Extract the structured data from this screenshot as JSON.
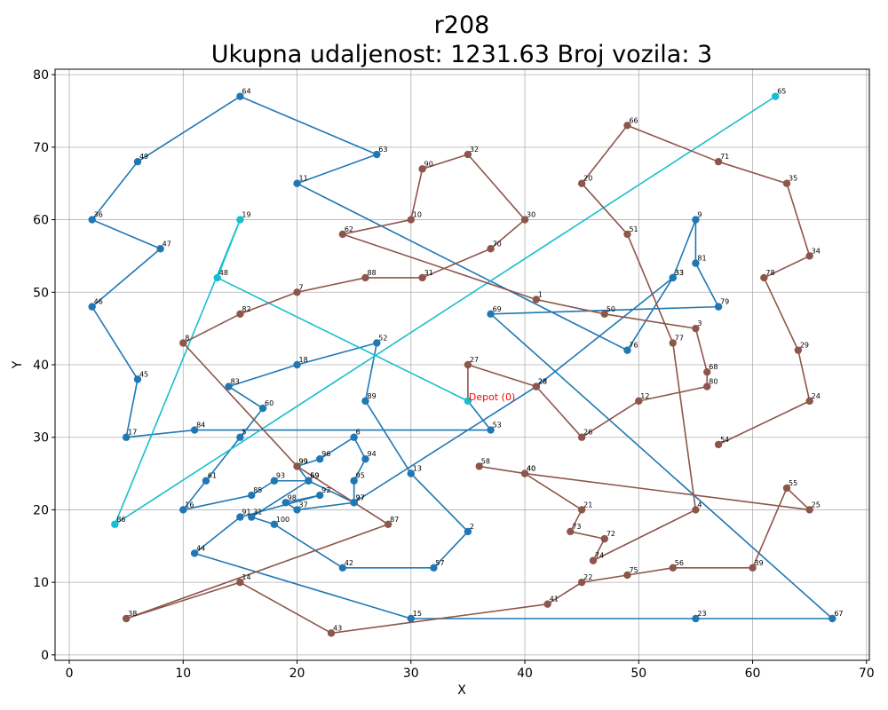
{
  "chart_data": {
    "type": "line",
    "title": "r208",
    "subtitle": "Ukupna udaljenost: 1231.63    Broj vozila: 3",
    "xlabel": "X",
    "ylabel": "Y",
    "xlim": [
      -1.25,
      70.25
    ],
    "ylim": [
      -0.75,
      80.75
    ],
    "xticks": [
      0,
      10,
      20,
      30,
      40,
      50,
      60,
      70
    ],
    "yticks": [
      0,
      10,
      20,
      30,
      40,
      50,
      60,
      70,
      80
    ],
    "grid": true,
    "depot": {
      "label": "Depot (0)",
      "x": 35,
      "y": 35,
      "color": "#ff0000"
    },
    "series": [
      {
        "color": "#1f77b4",
        "points": [
          [
            "",
            35,
            35
          ],
          [
            "53",
            37,
            31
          ],
          [
            "84",
            11,
            31
          ],
          [
            "17",
            5,
            30
          ],
          [
            "45",
            6,
            38
          ],
          [
            "46",
            2,
            48
          ],
          [
            "47",
            8,
            56
          ],
          [
            "36",
            2,
            60
          ],
          [
            "49",
            6,
            68
          ],
          [
            "64",
            15,
            77
          ],
          [
            "63",
            27,
            69
          ],
          [
            "11",
            20,
            65
          ],
          [
            "76",
            49,
            42
          ],
          [
            "33",
            53,
            52
          ],
          [
            "28",
            41,
            37
          ],
          [
            "27",
            25,
            21
          ],
          [
            "69",
            21,
            24
          ],
          [
            "31",
            16,
            19
          ],
          [
            "100",
            18,
            18
          ],
          [
            "42",
            24,
            12
          ],
          [
            "57",
            32,
            12
          ],
          [
            "2",
            35,
            17
          ],
          [
            "13",
            30,
            25
          ],
          [
            "89",
            26,
            35
          ],
          [
            "52",
            27,
            43
          ],
          [
            "18",
            20,
            40
          ],
          [
            "83",
            14,
            37
          ],
          [
            "60",
            17,
            34
          ],
          [
            "5",
            15,
            30
          ],
          [
            "61",
            12,
            24
          ],
          [
            "16",
            10,
            20
          ],
          [
            "85",
            16,
            22
          ],
          [
            "93",
            18,
            24
          ],
          [
            "59",
            21,
            24
          ],
          [
            "99",
            20,
            26
          ],
          [
            "96",
            22,
            27
          ],
          [
            "6",
            25,
            30
          ],
          [
            "94",
            26,
            27
          ],
          [
            "95",
            25,
            24
          ],
          [
            "97",
            25,
            21
          ],
          [
            "37",
            20,
            20
          ],
          [
            "98",
            19,
            21
          ],
          [
            "92",
            22,
            22
          ],
          [
            "91",
            15,
            19
          ],
          [
            "44",
            11,
            14
          ],
          [
            "15",
            30,
            5
          ],
          [
            "23",
            55,
            5
          ],
          [
            "67",
            67,
            5
          ],
          [
            "69",
            37,
            47
          ],
          [
            "79",
            57,
            48
          ],
          [
            "81",
            55,
            54
          ],
          [
            "9",
            55,
            60
          ],
          [
            "33",
            53,
            52
          ]
        ]
      },
      {
        "color": "#17becf",
        "points": [
          [
            "",
            35,
            35
          ],
          [
            "48",
            13,
            52
          ],
          [
            "19",
            15,
            60
          ],
          [
            "86",
            4,
            18
          ],
          [
            "65",
            62,
            77
          ]
        ]
      },
      {
        "color": "#8c564b",
        "points": [
          [
            "",
            35,
            35
          ],
          [
            "27",
            35,
            40
          ],
          [
            "28",
            41,
            37
          ],
          [
            "26",
            45,
            30
          ],
          [
            "12",
            50,
            35
          ],
          [
            "80",
            56,
            37
          ],
          [
            "68",
            56,
            39
          ],
          [
            "3",
            55,
            45
          ],
          [
            "50",
            47,
            47
          ],
          [
            "1",
            41,
            49
          ],
          [
            "62",
            24,
            58
          ],
          [
            "10",
            30,
            60
          ],
          [
            "90",
            31,
            67
          ],
          [
            "32",
            35,
            69
          ],
          [
            "30",
            40,
            60
          ],
          [
            "70",
            37,
            56
          ],
          [
            "31",
            31,
            52
          ],
          [
            "88",
            26,
            52
          ],
          [
            "7",
            20,
            50
          ],
          [
            "82",
            15,
            47
          ],
          [
            "8",
            10,
            43
          ],
          [
            "99",
            20,
            26
          ],
          [
            "87",
            28,
            18
          ],
          [
            "38",
            5,
            5
          ],
          [
            "14",
            15,
            10
          ],
          [
            "43",
            23,
            3
          ],
          [
            "41",
            42,
            7
          ],
          [
            "22",
            45,
            10
          ],
          [
            "75",
            49,
            11
          ],
          [
            "56",
            53,
            12
          ],
          [
            "39",
            60,
            12
          ],
          [
            "55",
            63,
            23
          ],
          [
            "25",
            65,
            20
          ],
          [
            "40",
            40,
            25
          ],
          [
            "58",
            36,
            26
          ],
          [
            "40",
            40,
            25
          ],
          [
            "21",
            45,
            20
          ],
          [
            "73",
            44,
            17
          ],
          [
            "72",
            47,
            16
          ],
          [
            "74",
            46,
            13
          ],
          [
            "4",
            55,
            20
          ],
          [
            "77",
            53,
            43
          ],
          [
            "51",
            49,
            58
          ],
          [
            "20",
            45,
            65
          ],
          [
            "66",
            49,
            73
          ],
          [
            "71",
            57,
            68
          ],
          [
            "35",
            63,
            65
          ],
          [
            "34",
            65,
            55
          ],
          [
            "78",
            61,
            52
          ],
          [
            "29",
            64,
            42
          ],
          [
            "24",
            65,
            35
          ],
          [
            "54",
            57,
            29
          ]
        ]
      }
    ]
  }
}
